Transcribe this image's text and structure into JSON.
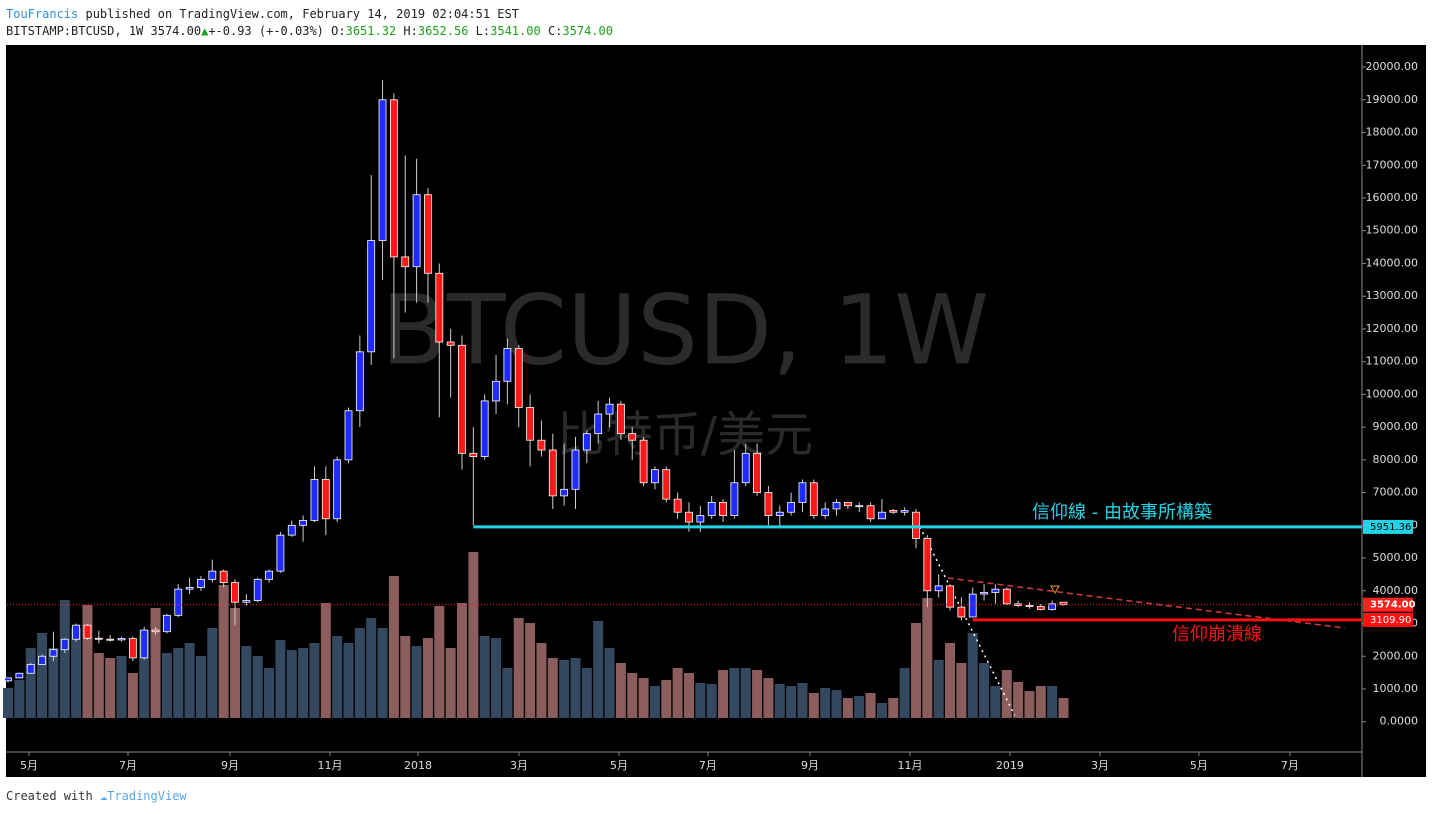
{
  "header": {
    "author": "TouFrancis",
    "published": "published on TradingView.com, February 14, 2019 02:04:51 EST",
    "symbol": "BITSTAMP:BTCUSD, 1W 3574.00",
    "change": "+-0.93 (+-0.03%)",
    "o_label": "O:",
    "o": "3651.32",
    "h_label": "H:",
    "h": "3652.56",
    "l_label": "L:",
    "l": "3541.00",
    "c_label": "C:",
    "c": "3574.00"
  },
  "footer": {
    "created": "Created with",
    "brand": "TradingView"
  },
  "chart_data": {
    "type": "candlestick",
    "title": "BTCUSD, 1W",
    "subtitle": "比特币/美元",
    "open": [
      1250,
      1340,
      1480,
      1750,
      2000,
      2200,
      2520,
      2950,
      2550,
      2520,
      2500,
      2540,
      1950,
      2800,
      2750,
      3250,
      4050,
      4100,
      4350,
      4600,
      4250,
      3650,
      3700,
      4350,
      4600,
      5700,
      6000,
      6150,
      7400,
      6200,
      8000,
      9500,
      11300,
      14700,
      19000,
      14200,
      13900,
      16100,
      13700,
      11600,
      11500,
      8200,
      8100,
      9800,
      10400,
      11400,
      9600,
      8600,
      8300,
      6900,
      7100,
      8300,
      8800,
      9400,
      9700,
      8800,
      8600,
      7300,
      7700,
      6800,
      6400,
      6100,
      6300,
      6700,
      6300,
      7300,
      8200,
      7000,
      6300,
      6400,
      6700,
      7300,
      6300,
      6500,
      6700,
      6600,
      6600,
      6200,
      6450,
      6400,
      6400,
      5600,
      4000,
      4150,
      3500,
      3200,
      3900,
      3950,
      4050,
      3600,
      3550,
      3520,
      3430,
      3651.32
    ],
    "high": [
      1350,
      1500,
      1800,
      2050,
      2750,
      2550,
      3000,
      2980,
      2780,
      2650,
      2600,
      2600,
      2900,
      2900,
      3300,
      4200,
      4400,
      4450,
      4950,
      4650,
      4350,
      3900,
      4400,
      4650,
      5800,
      6150,
      6300,
      7800,
      7800,
      8100,
      9600,
      11800,
      16700,
      19600,
      19200,
      17300,
      17200,
      16300,
      14000,
      12000,
      11800,
      9000,
      10000,
      11200,
      11700,
      11500,
      10000,
      9200,
      8800,
      8500,
      8700,
      8900,
      9800,
      9900,
      9800,
      9000,
      8700,
      7800,
      7800,
      7000,
      6700,
      6600,
      6900,
      6800,
      8300,
      8500,
      8500,
      7200,
      6600,
      7000,
      7400,
      7400,
      6700,
      6800,
      6700,
      6700,
      6700,
      6800,
      6500,
      6550,
      6500,
      5700,
      4500,
      4200,
      3800,
      4100,
      4200,
      4200,
      4100,
      3700,
      3650,
      3600,
      3700,
      3652.56
    ],
    "low": [
      1200,
      1320,
      1470,
      1740,
      1850,
      2100,
      2450,
      2500,
      2400,
      2450,
      2450,
      1850,
      1900,
      2650,
      2700,
      3200,
      3900,
      4000,
      4250,
      4100,
      2950,
      3550,
      3650,
      4250,
      4550,
      5650,
      5500,
      6100,
      5700,
      6100,
      7900,
      9000,
      10900,
      13500,
      11100,
      12500,
      12800,
      12800,
      9300,
      9900,
      7700,
      6000,
      8000,
      9400,
      9700,
      9000,
      7800,
      8100,
      6500,
      6600,
      6500,
      7900,
      8500,
      9000,
      8600,
      8000,
      7200,
      7100,
      6700,
      6200,
      5800,
      5800,
      6200,
      6100,
      6200,
      7200,
      6900,
      6000,
      5900,
      6300,
      6400,
      6200,
      6200,
      6300,
      6500,
      6400,
      6100,
      6200,
      6350,
      6300,
      5300,
      3500,
      3800,
      3400,
      3100,
      3200,
      3700,
      3600,
      3550,
      3500,
      3450,
      3400,
      3400,
      3541
    ],
    "close": [
      1340,
      1480,
      1750,
      2000,
      2200,
      2520,
      2950,
      2550,
      2520,
      2500,
      2540,
      1950,
      2800,
      2750,
      3250,
      4050,
      4100,
      4350,
      4600,
      4250,
      3650,
      3700,
      4350,
      4600,
      5700,
      6000,
      6150,
      7400,
      6200,
      8000,
      9500,
      11300,
      14700,
      19000,
      14200,
      13900,
      16100,
      13700,
      11600,
      11500,
      8200,
      8100,
      9800,
      10400,
      11400,
      9600,
      8600,
      8300,
      6900,
      7100,
      8300,
      8800,
      9400,
      9700,
      8800,
      8600,
      7300,
      7700,
      6800,
      6400,
      6100,
      6300,
      6700,
      6300,
      7300,
      8200,
      7000,
      6300,
      6400,
      6700,
      7300,
      6300,
      6500,
      6700,
      6600,
      6600,
      6200,
      6400,
      6400,
      6450,
      5600,
      4000,
      4150,
      3500,
      3200,
      3900,
      3950,
      4050,
      3600,
      3550,
      3520,
      3430,
      3600,
      3574
    ],
    "volume": [
      30,
      38,
      70,
      85,
      70,
      118,
      90,
      113,
      65,
      60,
      62,
      45,
      88,
      110,
      65,
      70,
      75,
      62,
      90,
      133,
      110,
      72,
      62,
      50,
      78,
      68,
      70,
      75,
      115,
      82,
      75,
      90,
      100,
      90,
      142,
      82,
      72,
      80,
      112,
      70,
      115,
      166,
      82,
      80,
      50,
      100,
      95,
      75,
      60,
      58,
      60,
      50,
      97,
      70,
      55,
      45,
      40,
      32,
      38,
      50,
      45,
      35,
      34,
      48,
      50,
      50,
      48,
      40,
      34,
      32,
      35,
      25,
      30,
      28,
      20,
      22,
      25,
      15,
      20,
      50,
      95,
      120,
      58,
      75,
      55,
      85,
      55,
      32,
      48,
      36,
      27,
      32,
      32,
      20
    ],
    "vlim": [
      0,
      170
    ],
    "colors": {
      "up": "#1f2bff",
      "down": "#ff1a1a",
      "volume_up": "#34495f",
      "volume_down": "#8c5d5d"
    },
    "ylim": [
      -864,
      20674
    ],
    "yticks": [
      {
        "value": 0,
        "label": "0.0000"
      },
      {
        "value": 1000,
        "label": "1000.00"
      },
      {
        "value": 2000,
        "label": "2000.00"
      },
      {
        "value": 3000,
        "label": "3000.00"
      },
      {
        "value": 4000,
        "label": "4000.00"
      },
      {
        "value": 5000,
        "label": "5000.00"
      },
      {
        "value": 6000,
        "label": "6000.00"
      },
      {
        "value": 7000,
        "label": "7000.00"
      },
      {
        "value": 8000,
        "label": "8000.00"
      },
      {
        "value": 9000,
        "label": "9000.00"
      },
      {
        "value": 10000,
        "label": "10000.00"
      },
      {
        "value": 11000,
        "label": "11000.00"
      },
      {
        "value": 12000,
        "label": "12000.00"
      },
      {
        "value": 13000,
        "label": "13000.00"
      },
      {
        "value": 14000,
        "label": "14000.00"
      },
      {
        "value": 15000,
        "label": "15000.00"
      },
      {
        "value": 16000,
        "label": "16000.00"
      },
      {
        "value": 17000,
        "label": "17000.00"
      },
      {
        "value": 18000,
        "label": "18000.00"
      },
      {
        "value": 19000,
        "label": "19000.00"
      },
      {
        "value": 20000,
        "label": "20000.00"
      }
    ],
    "xlim": [
      -0.09,
      119.3
    ],
    "xticks": [
      {
        "value": 1.85,
        "label": "5月"
      },
      {
        "value": 10.57,
        "label": "7月"
      },
      {
        "value": 19.56,
        "label": "9月"
      },
      {
        "value": 28.37,
        "label": "11月"
      },
      {
        "value": 36.12,
        "label": "2018"
      },
      {
        "value": 45.02,
        "label": "3月"
      },
      {
        "value": 53.83,
        "label": "5月"
      },
      {
        "value": 61.67,
        "label": "7月"
      },
      {
        "value": 70.66,
        "label": "9月"
      },
      {
        "value": 79.47,
        "label": "11月"
      },
      {
        "value": 88.28,
        "label": "2019"
      },
      {
        "value": 96.21,
        "label": "3月"
      },
      {
        "value": 104.93,
        "label": "5月"
      },
      {
        "value": 112.95,
        "label": "7月"
      }
    ],
    "levels": [
      {
        "name": "信仰線 - 由故事所構築",
        "value": 5951.36,
        "label": "5951.36",
        "color": "#22d3e6",
        "start": 41
      },
      {
        "name": "信仰崩潰線",
        "value": 3109.9,
        "label": "3109.90",
        "color": "#ff1010",
        "start": 85
      }
    ],
    "last_price": {
      "value": 3574,
      "label": "3574.00",
      "color": "#ff2020"
    },
    "trendlines": [
      {
        "x": [
          80.35,
          88.7
        ],
        "y": [
          5950,
          200
        ],
        "color": "#ffffff",
        "dash": "2 4"
      },
      {
        "x": [
          82.8,
          117.8
        ],
        "y": [
          4390,
          2860
        ],
        "color": "#d43a3a",
        "dash": "6 4"
      }
    ]
  }
}
